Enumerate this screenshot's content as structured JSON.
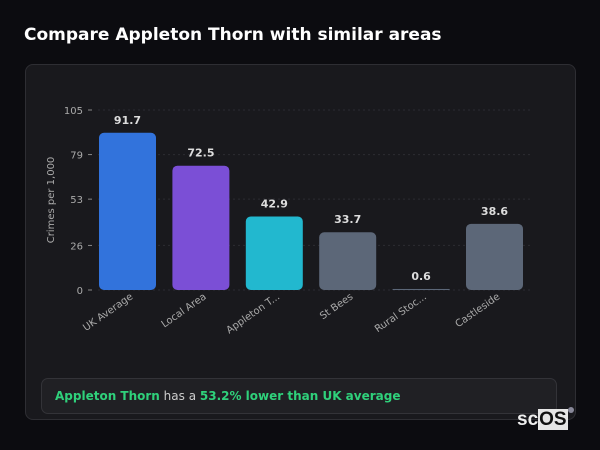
{
  "title": "Compare Appleton Thorn with similar areas",
  "chart_data": {
    "type": "bar",
    "ylabel": "Crimes per 1,000",
    "xlabel": "",
    "ylim": [
      0,
      105
    ],
    "yticks": [
      0,
      26,
      53,
      79,
      105
    ],
    "grid": true,
    "categories": [
      "UK Average",
      "Local Area",
      "Appleton T...",
      "St Bees",
      "Rural Stoc...",
      "Castleside"
    ],
    "values": [
      91.7,
      72.5,
      42.9,
      33.7,
      0.6,
      38.6
    ],
    "value_labels": [
      "91.7",
      "72.5",
      "42.9",
      "33.7",
      "0.6",
      "38.6"
    ],
    "colors": [
      "#3273dc",
      "#7b4fd6",
      "#22b8cf",
      "#5c6778",
      "#5c6778",
      "#5c6778"
    ]
  },
  "footer": {
    "area": "Appleton Thorn",
    "mid": " has a ",
    "highlight": "53.2% lower than UK average"
  },
  "logo": {
    "a": "sc",
    "b": "OS"
  }
}
